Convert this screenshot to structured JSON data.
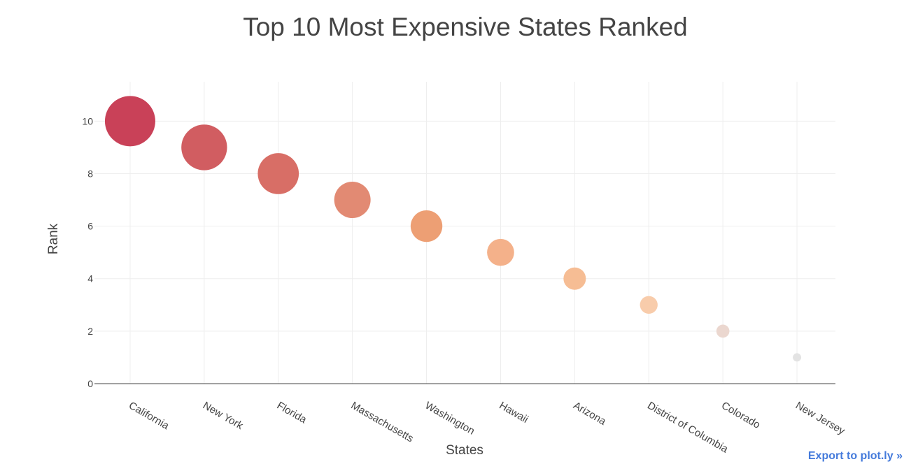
{
  "chart_data": {
    "type": "scatter",
    "title": "Top 10 Most Expensive States Ranked",
    "xlabel": "States",
    "ylabel": "Rank",
    "categories": [
      "California",
      "New York",
      "Florida",
      "Massachusetts",
      "Washington",
      "Hawaii",
      "Arizona",
      "District of Columbia",
      "Colorado",
      "New Jersey"
    ],
    "values": [
      10,
      9,
      8,
      7,
      6,
      5,
      4,
      3,
      2,
      1
    ],
    "ylim": [
      0,
      11.5
    ],
    "yticks": [
      "0",
      "2",
      "4",
      "6",
      "8",
      "10"
    ],
    "grid": true,
    "legend": "none",
    "marker_colors": [
      "#c6374f",
      "#cf5459",
      "#d6665e",
      "#e0846c",
      "#ec9a6d",
      "#f3ad84",
      "#f6b98e",
      "#f8c9a6",
      "#ead5cc",
      "#e1e1e1"
    ]
  },
  "export_link": "Export to plot.ly »"
}
